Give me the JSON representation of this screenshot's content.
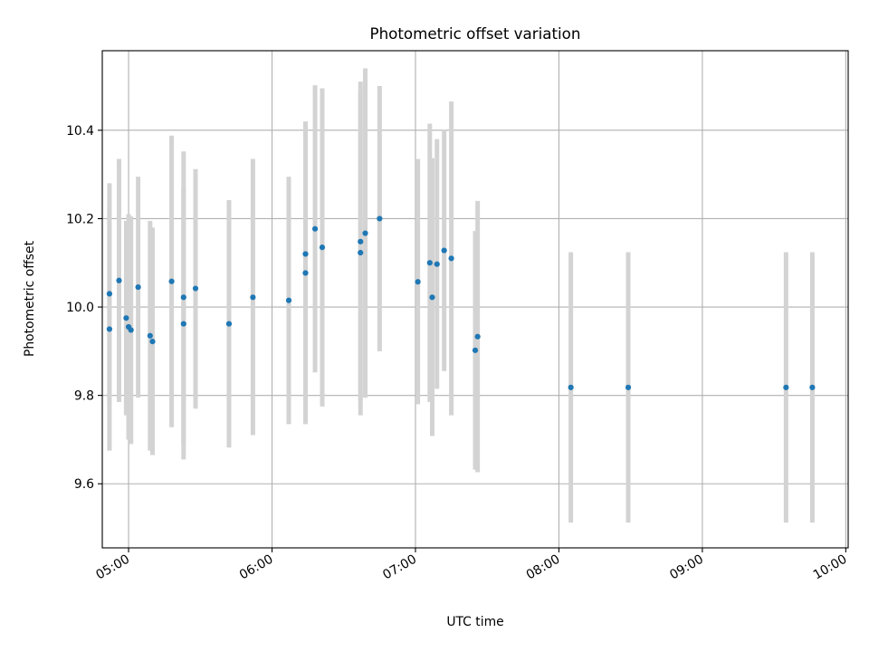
{
  "chart_data": {
    "type": "scatter",
    "title": "Photometric offset variation",
    "xlabel": "UTC time",
    "ylabel": "Photometric offset",
    "x_tick_labels": [
      "05:00",
      "06:00",
      "07:00",
      "08:00",
      "09:00",
      "10:00"
    ],
    "y_tick_labels": [
      "9.6",
      "9.8",
      "10.0",
      "10.2",
      "10.4"
    ],
    "y_ticks": [
      9.6,
      9.8,
      10.0,
      10.2,
      10.4
    ],
    "xlim": [
      "04:49",
      "10:01"
    ],
    "ylim": [
      9.455,
      10.58
    ],
    "grid": true,
    "colors": {
      "marker": "#1f77b4",
      "errorbar": "#d3d3d3",
      "grid": "#b0b0b0"
    },
    "series": [
      {
        "points": [
          {
            "x": "04:52",
            "y": 10.03,
            "lo": 9.78,
            "hi": 10.28
          },
          {
            "x": "04:52",
            "y": 9.95,
            "lo": 9.675,
            "hi": 10.225
          },
          {
            "x": "04:56",
            "y": 10.06,
            "lo": 9.785,
            "hi": 10.335
          },
          {
            "x": "04:59",
            "y": 9.975,
            "lo": 9.755,
            "hi": 10.195
          },
          {
            "x": "05:00",
            "y": 9.955,
            "lo": 9.7,
            "hi": 10.21
          },
          {
            "x": "05:01",
            "y": 9.948,
            "lo": 9.69,
            "hi": 10.205
          },
          {
            "x": "05:04",
            "y": 10.045,
            "lo": 9.795,
            "hi": 10.295
          },
          {
            "x": "05:09",
            "y": 9.935,
            "lo": 9.675,
            "hi": 10.195
          },
          {
            "x": "05:10",
            "y": 9.922,
            "lo": 9.665,
            "hi": 10.18
          },
          {
            "x": "05:18",
            "y": 10.058,
            "lo": 9.728,
            "hi": 10.388
          },
          {
            "x": "05:23",
            "y": 10.022,
            "lo": 9.692,
            "hi": 10.352
          },
          {
            "x": "05:23",
            "y": 9.962,
            "lo": 9.655,
            "hi": 10.27
          },
          {
            "x": "05:28",
            "y": 10.042,
            "lo": 9.77,
            "hi": 10.312
          },
          {
            "x": "05:42",
            "y": 9.962,
            "lo": 9.682,
            "hi": 10.242
          },
          {
            "x": "05:52",
            "y": 10.022,
            "lo": 9.71,
            "hi": 10.335
          },
          {
            "x": "06:07",
            "y": 10.015,
            "lo": 9.735,
            "hi": 10.295
          },
          {
            "x": "06:14",
            "y": 10.12,
            "lo": 9.835,
            "hi": 10.405
          },
          {
            "x": "06:14",
            "y": 10.077,
            "lo": 9.735,
            "hi": 10.42
          },
          {
            "x": "06:18",
            "y": 10.177,
            "lo": 9.852,
            "hi": 10.502
          },
          {
            "x": "06:21",
            "y": 10.135,
            "lo": 9.775,
            "hi": 10.495
          },
          {
            "x": "06:37",
            "y": 10.148,
            "lo": 9.788,
            "hi": 10.51
          },
          {
            "x": "06:37",
            "y": 10.123,
            "lo": 9.755,
            "hi": 10.49
          },
          {
            "x": "06:39",
            "y": 10.167,
            "lo": 9.795,
            "hi": 10.54
          },
          {
            "x": "06:45",
            "y": 10.2,
            "lo": 9.9,
            "hi": 10.5
          },
          {
            "x": "07:01",
            "y": 10.057,
            "lo": 9.78,
            "hi": 10.335
          },
          {
            "x": "07:06",
            "y": 10.1,
            "lo": 9.785,
            "hi": 10.415
          },
          {
            "x": "07:07",
            "y": 10.022,
            "lo": 9.708,
            "hi": 10.337
          },
          {
            "x": "07:09",
            "y": 10.097,
            "lo": 9.815,
            "hi": 10.38
          },
          {
            "x": "07:12",
            "y": 10.128,
            "lo": 9.855,
            "hi": 10.402
          },
          {
            "x": "07:15",
            "y": 10.11,
            "lo": 9.755,
            "hi": 10.465
          },
          {
            "x": "07:25",
            "y": 9.902,
            "lo": 9.632,
            "hi": 10.172
          },
          {
            "x": "07:26",
            "y": 9.933,
            "lo": 9.626,
            "hi": 10.24
          },
          {
            "x": "08:05",
            "y": 9.818,
            "lo": 9.512,
            "hi": 10.124
          },
          {
            "x": "08:29",
            "y": 9.818,
            "lo": 9.512,
            "hi": 10.124
          },
          {
            "x": "09:35",
            "y": 9.818,
            "lo": 9.512,
            "hi": 10.124
          },
          {
            "x": "09:46",
            "y": 9.818,
            "lo": 9.512,
            "hi": 10.124
          }
        ]
      }
    ]
  }
}
